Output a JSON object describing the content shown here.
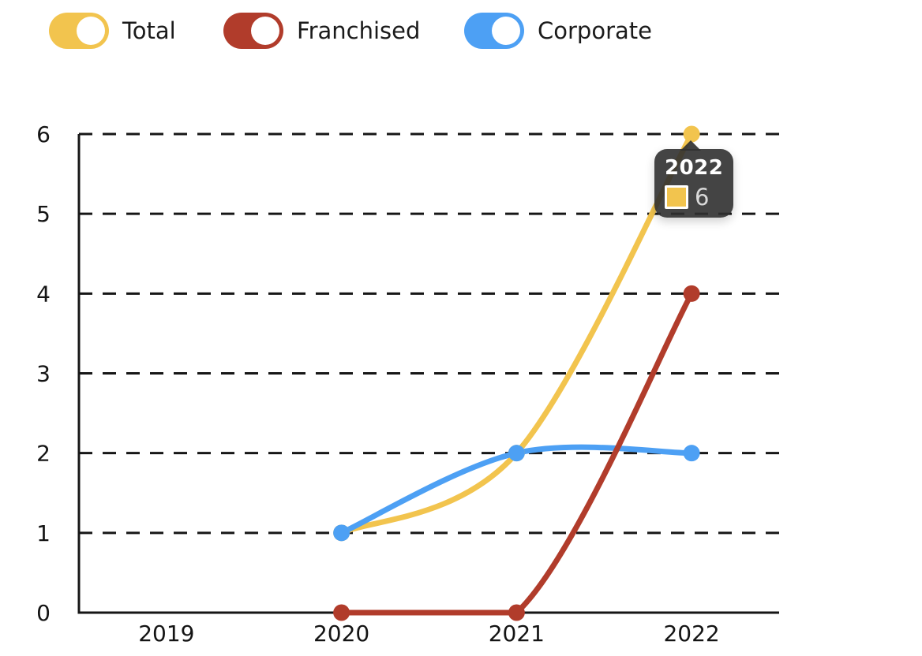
{
  "legend": {
    "items": [
      {
        "label": "Total",
        "color": "#F2C44E",
        "state": "on"
      },
      {
        "label": "Franchised",
        "color": "#B13C2B",
        "state": "on"
      },
      {
        "label": "Corporate",
        "color": "#4DA0F4",
        "state": "on"
      }
    ]
  },
  "chart_data": {
    "type": "line",
    "categories": [
      "2019",
      "2020",
      "2021",
      "2022"
    ],
    "series": [
      {
        "name": "Total",
        "color": "#F2C44E",
        "values": [
          null,
          1,
          2,
          6
        ]
      },
      {
        "name": "Franchised",
        "color": "#B13C2B",
        "values": [
          null,
          0,
          0,
          4
        ]
      },
      {
        "name": "Corporate",
        "color": "#4DA0F4",
        "values": [
          null,
          1,
          2,
          2
        ]
      }
    ],
    "ylim": [
      0,
      6
    ],
    "yticks": [
      0,
      1,
      2,
      3,
      4,
      5,
      6
    ],
    "grid": "dashed-horizontal",
    "legend_position": "top",
    "curve": "smooth",
    "axis_color": "#161616"
  },
  "tooltip": {
    "title": "2022",
    "series": "Total",
    "value": "6",
    "swatch_color": "#F2C44E"
  }
}
